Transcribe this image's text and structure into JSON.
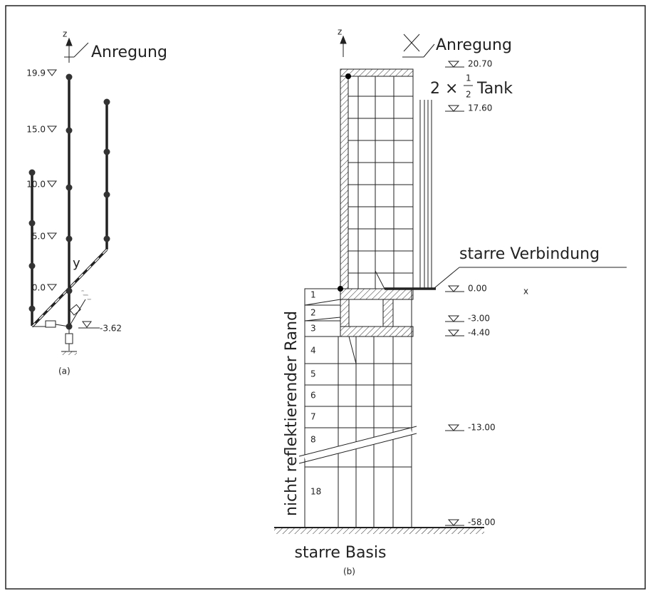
{
  "panel_a": {
    "axis_z": "z",
    "excitation": "Anregung",
    "levels": [
      "19.9",
      "15.0",
      "10.0",
      "5.0",
      "0.0"
    ],
    "base_level": "-3.62",
    "axis_y": "y",
    "caption": "(a)"
  },
  "panel_b": {
    "axis_z": "z",
    "excitation": "Anregung",
    "tank_label": {
      "factor": "2 ×",
      "numerator": "1",
      "denominator": "2",
      "name": "Tank"
    },
    "levels": [
      "20.70",
      "17.60",
      "0.00",
      "-3.00",
      "-4.40",
      "-13.00",
      "-58.00"
    ],
    "axis_x": "x",
    "rigid_connection": "starre Verbindung",
    "layers": [
      "1",
      "2",
      "3",
      "4",
      "5",
      "6",
      "7",
      "8",
      "18"
    ],
    "side_boundary": "nicht reflektierender Rand",
    "base": "starre Basis",
    "caption": "(b)"
  }
}
